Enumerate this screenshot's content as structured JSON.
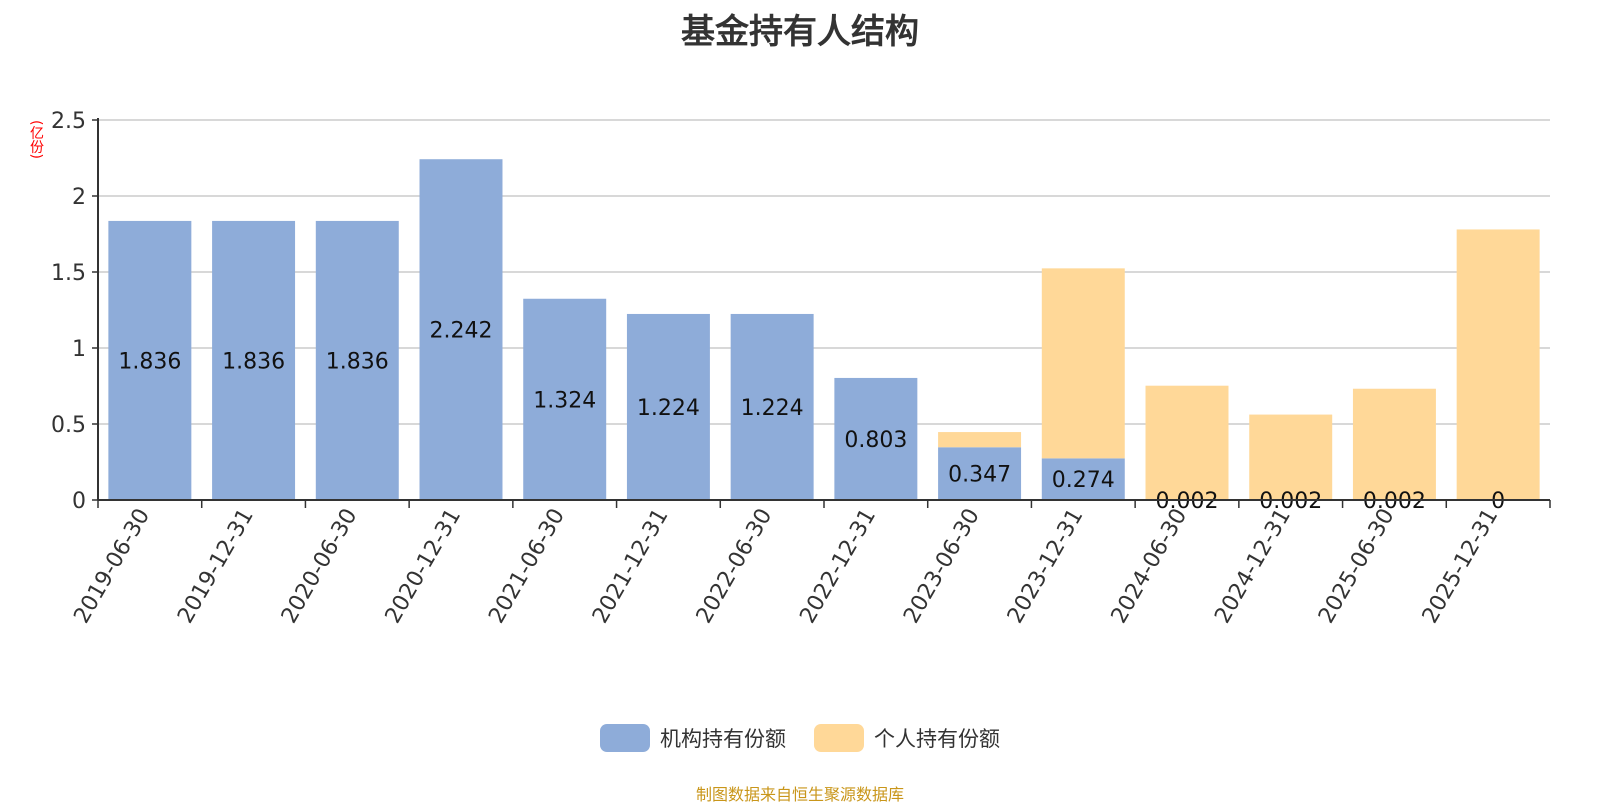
{
  "chart_data": {
    "type": "bar",
    "stacked": true,
    "title": "基金持有人结构",
    "unit_label": "(亿份)",
    "ylim": [
      0,
      2.5
    ],
    "yticks": [
      "0",
      "0.5",
      "1",
      "1.5",
      "2",
      "2.5"
    ],
    "grid": true,
    "legend_position": "bottom",
    "categories": [
      "2019-06-30",
      "2019-12-31",
      "2020-06-30",
      "2020-12-31",
      "2021-06-30",
      "2021-12-31",
      "2022-06-30",
      "2022-12-31",
      "2023-06-30",
      "2023-12-31",
      "2024-06-30",
      "2024-12-31",
      "2025-06-30",
      "2025-12-31"
    ],
    "series": [
      {
        "name": "机构持有份额",
        "color": "#8eacd9",
        "values": [
          1.836,
          1.836,
          1.836,
          2.242,
          1.324,
          1.224,
          1.224,
          0.803,
          0.347,
          0.274,
          0.002,
          0.002,
          0.002,
          0
        ],
        "labels": [
          "1.836",
          "1.836",
          "1.836",
          "2.242",
          "1.324",
          "1.224",
          "1.224",
          "0.803",
          "0.347",
          "0.274",
          "0.002",
          "0.002",
          "0.002",
          "0"
        ]
      },
      {
        "name": "个人持有份额",
        "color": "#ffd898",
        "values": [
          0,
          0,
          0,
          0,
          0,
          0,
          0,
          0,
          0.1,
          1.25,
          0.75,
          0.56,
          0.73,
          1.78
        ]
      }
    ]
  },
  "source_text": "制图数据来自恒生聚源数据库",
  "source_color": "#c9961a"
}
